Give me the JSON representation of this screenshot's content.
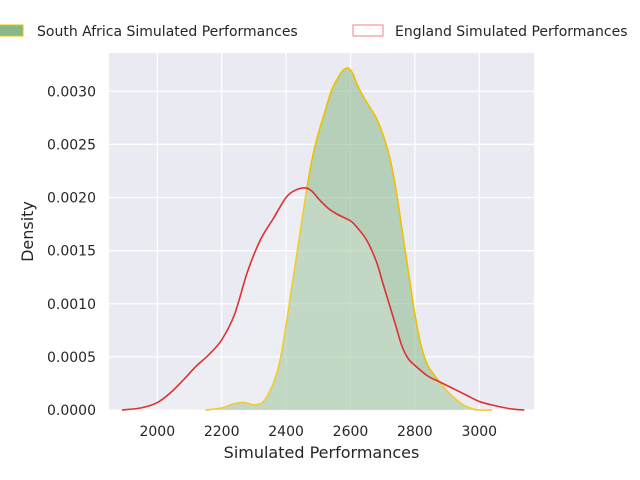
{
  "chart_data": {
    "type": "area",
    "title": "",
    "xlabel": "Simulated Performances",
    "ylabel": "Density",
    "xlim": [
      1850,
      3170
    ],
    "ylim": [
      0,
      0.00336
    ],
    "xticks": [
      2000,
      2200,
      2400,
      2600,
      2800,
      3000
    ],
    "yticks": [
      0.0,
      0.0005,
      0.001,
      0.0015,
      0.002,
      0.0025,
      0.003
    ],
    "ytick_labels": [
      "0.0000",
      "0.0005",
      "0.0010",
      "0.0015",
      "0.0020",
      "0.0025",
      "0.0030"
    ],
    "grid": true,
    "legend": {
      "placement": "top, above plot"
    },
    "colors": {
      "background": "#eaeaf2",
      "grid": "#ffffff",
      "south_africa_fill": "#88b888",
      "south_africa_line": "#f0c000",
      "england_line": "#e03030",
      "england_legend_edge": "#f08080"
    },
    "series": [
      {
        "name": "South Africa Simulated Performances",
        "style": "filled",
        "x": [
          2150,
          2200,
          2240,
          2270,
          2300,
          2330,
          2360,
          2380,
          2400,
          2420,
          2440,
          2460,
          2480,
          2500,
          2520,
          2540,
          2560,
          2575,
          2590,
          2600,
          2610,
          2620,
          2640,
          2660,
          2680,
          2700,
          2720,
          2740,
          2760,
          2780,
          2800,
          2820,
          2840,
          2860,
          2880,
          2900,
          2920,
          2950,
          2980,
          3000,
          3040
        ],
        "values": [
          0.0,
          2e-05,
          6e-05,
          7e-05,
          5e-05,
          8e-05,
          0.00025,
          0.00045,
          0.0008,
          0.0012,
          0.0016,
          0.002,
          0.00235,
          0.0026,
          0.0028,
          0.003,
          0.00312,
          0.00319,
          0.00322,
          0.0032,
          0.00315,
          0.00307,
          0.00295,
          0.00285,
          0.00275,
          0.0026,
          0.0024,
          0.0021,
          0.0017,
          0.0013,
          0.0009,
          0.0006,
          0.00042,
          0.00033,
          0.00025,
          0.00018,
          0.00012,
          5e-05,
          1e-05,
          0.0,
          0.0
        ]
      },
      {
        "name": "England Simulated Performances",
        "style": "line",
        "x": [
          1890,
          1950,
          2000,
          2040,
          2080,
          2120,
          2160,
          2200,
          2240,
          2280,
          2320,
          2360,
          2400,
          2430,
          2460,
          2480,
          2500,
          2530,
          2560,
          2600,
          2620,
          2650,
          2680,
          2700,
          2720,
          2740,
          2760,
          2780,
          2800,
          2840,
          2880,
          2920,
          2960,
          3000,
          3050,
          3100,
          3140
        ],
        "values": [
          0.0,
          2e-05,
          7e-05,
          0.00016,
          0.00028,
          0.00041,
          0.00052,
          0.00066,
          0.0009,
          0.0013,
          0.0016,
          0.0018,
          0.002,
          0.00207,
          0.00209,
          0.00206,
          0.00199,
          0.0019,
          0.00184,
          0.00178,
          0.00172,
          0.0016,
          0.0014,
          0.0012,
          0.001,
          0.0008,
          0.0006,
          0.00048,
          0.00042,
          0.00032,
          0.00026,
          0.0002,
          0.00014,
          8e-05,
          4e-05,
          1e-05,
          0.0
        ]
      }
    ]
  }
}
